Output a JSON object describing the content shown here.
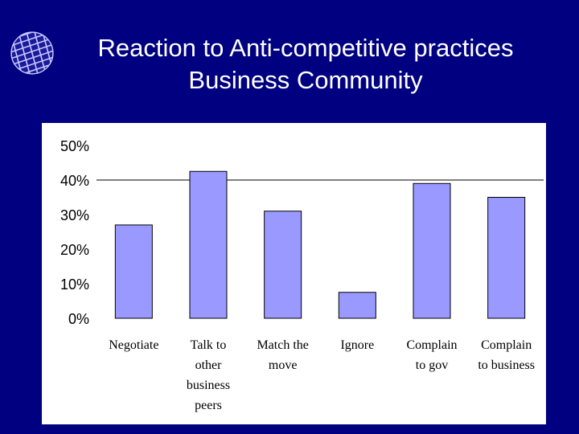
{
  "slide": {
    "title_line1": "Reaction to Anti-competitive practices",
    "title_line2": "Business Community"
  },
  "logo": {
    "icon": "globe-icon"
  },
  "chart_data": {
    "type": "bar",
    "categories": [
      [
        "Negotiate"
      ],
      [
        "Talk to",
        "other",
        "business",
        "peers"
      ],
      [
        "Match the",
        "move"
      ],
      [
        "Ignore"
      ],
      [
        "Complain",
        "to gov"
      ],
      [
        "Complain",
        "to business"
      ]
    ],
    "values": [
      27,
      42.5,
      31,
      7.5,
      39,
      35
    ],
    "ylim": [
      0,
      50
    ],
    "yticks": [
      "0%",
      "10%",
      "20%",
      "30%",
      "40%",
      "50%"
    ],
    "ytick_values": [
      0,
      10,
      20,
      30,
      40,
      50
    ],
    "reference_line": 40,
    "grid": false,
    "bar_color": "#9999ff",
    "bar_stroke": "#000000"
  }
}
